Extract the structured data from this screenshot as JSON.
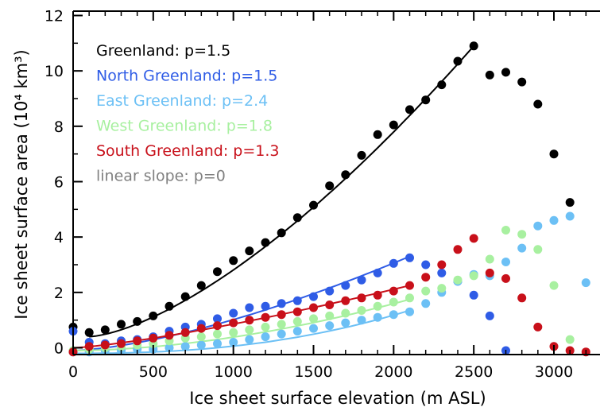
{
  "chart_data": {
    "type": "scatter",
    "xlabel": "Ice sheet surface elevation (m ASL)",
    "ylabel": "Ice sheet surface area (10⁴ km³)",
    "xlim": [
      0,
      3250
    ],
    "ylim": [
      -0.2,
      12
    ],
    "x_ticks": [
      0,
      500,
      1000,
      1500,
      2000,
      2500,
      3000
    ],
    "y_ticks": [
      0,
      2,
      4,
      6,
      8,
      10,
      12
    ],
    "grid": false,
    "legend_position": "top-left",
    "series": [
      {
        "name": "Greenland: p=1.5",
        "color": "#000000",
        "x": [
          0,
          100,
          200,
          300,
          400,
          500,
          600,
          700,
          800,
          900,
          1000,
          1100,
          1200,
          1300,
          1400,
          1500,
          1600,
          1700,
          1800,
          1900,
          2000,
          2100,
          2200,
          2300,
          2400,
          2500,
          2600,
          2700,
          2800,
          2900,
          3000,
          3100
        ],
        "y": [
          0.75,
          0.55,
          0.65,
          0.85,
          0.95,
          1.15,
          1.5,
          1.85,
          2.25,
          2.75,
          3.15,
          3.5,
          3.8,
          4.15,
          4.7,
          5.15,
          5.85,
          6.25,
          6.95,
          7.7,
          8.05,
          8.6,
          8.95,
          9.5,
          10.35,
          10.9,
          9.85,
          9.95,
          9.6,
          8.8,
          7.0,
          5.25
        ],
        "fit": {
          "x": [
            100,
            2500
          ],
          "y": [
            0.4,
            10.9
          ]
        }
      },
      {
        "name": "North Greenland: p=1.5",
        "color": "#2f5ce6",
        "x": [
          0,
          100,
          200,
          300,
          400,
          500,
          600,
          700,
          800,
          900,
          1000,
          1100,
          1200,
          1300,
          1400,
          1500,
          1600,
          1700,
          1800,
          1900,
          2000,
          2100,
          2200,
          2300,
          2400,
          2500,
          2600,
          2700
        ],
        "y": [
          0.6,
          0.2,
          0.15,
          0.25,
          0.3,
          0.4,
          0.6,
          0.75,
          0.85,
          1.05,
          1.25,
          1.45,
          1.5,
          1.6,
          1.7,
          1.85,
          2.05,
          2.25,
          2.45,
          2.7,
          3.05,
          3.25,
          3.0,
          2.7,
          2.4,
          1.9,
          1.15,
          -0.1
        ],
        "fit": {
          "x": [
            0,
            2100
          ],
          "y": [
            -0.1,
            3.3
          ]
        }
      },
      {
        "name": "East Greenland: p=2.4",
        "color": "#6cc0f5",
        "x": [
          0,
          100,
          200,
          300,
          400,
          500,
          600,
          700,
          800,
          900,
          1000,
          1100,
          1200,
          1300,
          1400,
          1500,
          1600,
          1700,
          1800,
          1900,
          2000,
          2100,
          2200,
          2300,
          2400,
          2500,
          2600,
          2700,
          2800,
          2900,
          3000,
          3100,
          3200
        ],
        "y": [
          -0.15,
          -0.15,
          -0.1,
          -0.1,
          -0.05,
          -0.05,
          0.0,
          0.05,
          0.1,
          0.15,
          0.2,
          0.3,
          0.4,
          0.5,
          0.6,
          0.7,
          0.8,
          0.9,
          1.0,
          1.1,
          1.2,
          1.3,
          1.6,
          2.0,
          2.4,
          2.65,
          2.6,
          3.1,
          3.6,
          4.4,
          4.6,
          4.75,
          2.35
        ],
        "fit": {
          "x": [
            0,
            2100
          ],
          "y": [
            -0.2,
            1.35
          ]
        }
      },
      {
        "name": "West Greenland: p=1.8",
        "color": "#a8f0a0",
        "x": [
          0,
          100,
          200,
          300,
          400,
          500,
          600,
          700,
          800,
          900,
          1000,
          1100,
          1200,
          1300,
          1400,
          1500,
          1600,
          1700,
          1800,
          1900,
          2000,
          2100,
          2200,
          2300,
          2400,
          2500,
          2600,
          2700,
          2800,
          2900,
          3000,
          3100
        ],
        "y": [
          -0.1,
          -0.05,
          0.0,
          0.05,
          0.1,
          0.15,
          0.25,
          0.35,
          0.4,
          0.5,
          0.55,
          0.65,
          0.75,
          0.85,
          0.95,
          1.05,
          1.15,
          1.25,
          1.35,
          1.5,
          1.65,
          1.8,
          2.05,
          2.15,
          2.45,
          2.6,
          3.2,
          4.25,
          4.1,
          3.55,
          2.25,
          0.3
        ],
        "fit": {
          "x": [
            0,
            2100
          ],
          "y": [
            -0.1,
            1.75
          ]
        }
      },
      {
        "name": "South Greenland: p=1.3",
        "color": "#c8101a",
        "x": [
          0,
          100,
          200,
          300,
          400,
          500,
          600,
          700,
          800,
          900,
          1000,
          1100,
          1200,
          1300,
          1400,
          1500,
          1600,
          1700,
          1800,
          1900,
          2000,
          2100,
          2200,
          2300,
          2400,
          2500,
          2600,
          2700,
          2800,
          2900,
          3000,
          3100,
          3200
        ],
        "y": [
          -0.15,
          0.05,
          0.1,
          0.15,
          0.25,
          0.35,
          0.45,
          0.55,
          0.7,
          0.8,
          0.9,
          1.0,
          1.1,
          1.2,
          1.3,
          1.45,
          1.55,
          1.7,
          1.8,
          1.9,
          2.05,
          2.25,
          2.55,
          3.0,
          3.55,
          3.95,
          2.7,
          2.5,
          1.8,
          0.75,
          0.05,
          -0.1,
          -0.15
        ],
        "fit": {
          "x": [
            0,
            2100
          ],
          "y": [
            0.0,
            2.25
          ]
        }
      },
      {
        "name": "linear slope: p=0",
        "color": "#808080",
        "x": [],
        "y": []
      }
    ]
  }
}
